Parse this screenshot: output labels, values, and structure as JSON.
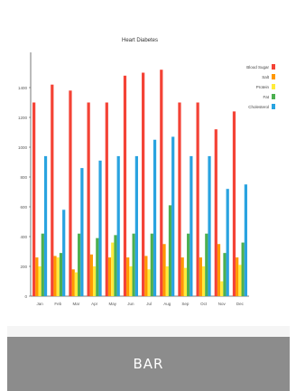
{
  "caption": "BAR",
  "chart_data": {
    "type": "bar",
    "title": "Heart Diabetes",
    "categories": [
      "Jan",
      "Feb",
      "Mar",
      "Apr",
      "May",
      "Jun",
      "Jul",
      "Aug",
      "Sep",
      "Oct",
      "Nov",
      "Dec"
    ],
    "ylim": [
      0,
      1600
    ],
    "yticks": [
      0,
      200,
      400,
      600,
      800,
      1000,
      1200,
      1400
    ],
    "series": [
      {
        "name": "Blood Sugar",
        "color": "#f44336",
        "values": [
          1300,
          1420,
          1380,
          1300,
          1300,
          1480,
          1500,
          1520,
          1300,
          1300,
          1120,
          1240
        ]
      },
      {
        "name": "Salt",
        "color": "#ff9800",
        "values": [
          260,
          270,
          180,
          280,
          260,
          260,
          270,
          350,
          260,
          260,
          350,
          260
        ]
      },
      {
        "name": "Protein",
        "color": "#ffeb3b",
        "values": [
          200,
          260,
          160,
          200,
          360,
          200,
          180,
          200,
          190,
          200,
          100,
          210
        ]
      },
      {
        "name": "Fat",
        "color": "#4caf50",
        "values": [
          420,
          290,
          420,
          390,
          410,
          420,
          420,
          610,
          420,
          420,
          290,
          360
        ]
      },
      {
        "name": "Cholesterol",
        "color": "#29a3e0",
        "values": [
          940,
          580,
          860,
          910,
          940,
          940,
          1050,
          1070,
          940,
          940,
          720,
          750
        ]
      }
    ],
    "legend_position": "right",
    "grid": false
  }
}
